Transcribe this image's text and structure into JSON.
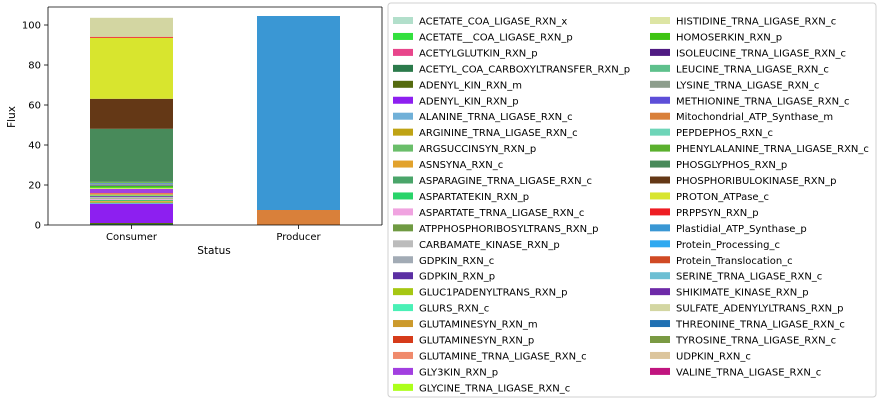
{
  "chart_data": {
    "type": "bar",
    "stacked": true,
    "xlabel": "Status",
    "ylabel": "Flux",
    "ylim": [
      0,
      109
    ],
    "yticks": [
      0,
      20,
      40,
      60,
      80,
      100
    ],
    "categories": [
      "Consumer",
      "Producer"
    ],
    "legend_position": "right, two columns",
    "series": [
      {
        "name": "ACETATE_COA_LIGASE_RXN_x",
        "color": "#b2dfcb",
        "values": [
          0,
          0
        ]
      },
      {
        "name": "ACETATE__COA_LIGASE_RXN_p",
        "color": "#33e03e",
        "values": [
          0,
          0
        ]
      },
      {
        "name": "ACETYLGLUTKIN_RXN_p",
        "color": "#e8458b",
        "values": [
          0,
          0
        ]
      },
      {
        "name": "ACETYL_COA_CARBOXYLTRANSFER_RXN_p",
        "color": "#2b7a4b",
        "values": [
          0.5,
          0
        ]
      },
      {
        "name": "ADENYL_KIN_RXN_m",
        "color": "#556b0f",
        "values": [
          0.5,
          0
        ]
      },
      {
        "name": "ADENYL_KIN_RXN_p",
        "color": "#8d1ff0",
        "values": [
          9.5,
          0
        ]
      },
      {
        "name": "ALANINE_TRNA_LIGASE_RXN_c",
        "color": "#70b0d8",
        "values": [
          0.5,
          0
        ]
      },
      {
        "name": "ARGININE_TRNA_LIGASE_RXN_c",
        "color": "#bfa314",
        "values": [
          0.3,
          0
        ]
      },
      {
        "name": "ARGSUCCINSYN_RXN_p",
        "color": "#6abe6a",
        "values": [
          0.3,
          0
        ]
      },
      {
        "name": "ASNSYNA_RXN_c",
        "color": "#e2a22c",
        "values": [
          0.4,
          0
        ]
      },
      {
        "name": "ASPARAGINE_TRNA_LIGASE_RXN_c",
        "color": "#4aa56a",
        "values": [
          0.3,
          0
        ]
      },
      {
        "name": "ASPARTATEKIN_RXN_p",
        "color": "#29d46a",
        "values": [
          0.3,
          0
        ]
      },
      {
        "name": "ASPARTATE_TRNA_LIGASE_RXN_c",
        "color": "#f0a3e0",
        "values": [
          0.5,
          0
        ]
      },
      {
        "name": "ATPPHOSPHORIBOSYLTRANS_RXN_p",
        "color": "#6f9a42",
        "values": [
          0.3,
          0
        ]
      },
      {
        "name": "CARBAMATE_KINASE_RXN_p",
        "color": "#bcbcbc",
        "values": [
          0.4,
          0
        ]
      },
      {
        "name": "GDPKIN_RXN_c",
        "color": "#a2abb5",
        "values": [
          0.3,
          0
        ]
      },
      {
        "name": "GDPKIN_RXN_p",
        "color": "#5b2fa3",
        "values": [
          0.4,
          0
        ]
      },
      {
        "name": "GLUC1PADENYLTRANS_RXN_p",
        "color": "#a6c713",
        "values": [
          0.3,
          0
        ]
      },
      {
        "name": "GLURS_RXN_c",
        "color": "#4af0b6",
        "values": [
          0.3,
          0
        ]
      },
      {
        "name": "GLUTAMINESYN_RXN_m",
        "color": "#cc9a2c",
        "values": [
          0.3,
          0
        ]
      },
      {
        "name": "GLUTAMINESYN_RXN_p",
        "color": "#d63b1a",
        "values": [
          0.3,
          0
        ]
      },
      {
        "name": "GLUTAMINE_TRNA_LIGASE_RXN_c",
        "color": "#f08a6c",
        "values": [
          0.3,
          0
        ]
      },
      {
        "name": "GLY3KIN_RXN_p",
        "color": "#a23fe0",
        "values": [
          2.0,
          0
        ]
      },
      {
        "name": "GLYCINE_TRNA_LIGASE_RXN_c",
        "color": "#acff1b",
        "values": [
          0.3,
          0
        ]
      },
      {
        "name": "HISTIDINE_TRNA_LIGASE_RXN_c",
        "color": "#dde5a4",
        "values": [
          0.3,
          0
        ]
      },
      {
        "name": "HOMOSERKIN_RXN_p",
        "color": "#3ec412",
        "values": [
          1.0,
          0
        ]
      },
      {
        "name": "ISOLEUCINE_TRNA_LIGASE_RXN_c",
        "color": "#4f1a82",
        "values": [
          0.3,
          0
        ]
      },
      {
        "name": "LEUCINE_TRNA_LIGASE_RXN_c",
        "color": "#5ec08c",
        "values": [
          0.3,
          0
        ]
      },
      {
        "name": "LYSINE_TRNA_LIGASE_RXN_c",
        "color": "#8d9e8c",
        "values": [
          0.3,
          0
        ]
      },
      {
        "name": "METHIONINE_TRNA_LIGASE_RXN_c",
        "color": "#5d4ed8",
        "values": [
          0.3,
          0
        ]
      },
      {
        "name": "Mitochondrial_ATP_Synthase_m",
        "color": "#d9803a",
        "values": [
          0,
          7.5
        ]
      },
      {
        "name": "PEPDEPHOS_RXN_c",
        "color": "#6ed5b8",
        "values": [
          0.3,
          0
        ]
      },
      {
        "name": "PHENYLALANINE_TRNA_LIGASE_RXN_c",
        "color": "#5bb02e",
        "values": [
          0.5,
          0
        ]
      },
      {
        "name": "PHOSGLYPHOS_RXN_p",
        "color": "#488a5a",
        "values": [
          26.5,
          0
        ]
      },
      {
        "name": "PHOSPHORIBULOKINASE_RXN_p",
        "color": "#643816",
        "values": [
          15.0,
          0
        ]
      },
      {
        "name": "PROTON_ATPase_c",
        "color": "#d8e52e",
        "values": [
          30.5,
          0
        ]
      },
      {
        "name": "PRPPSYN_RXN_p",
        "color": "#ee1d23",
        "values": [
          0.5,
          0
        ]
      },
      {
        "name": "Plastidial_ATP_Synthase_p",
        "color": "#3a97d4",
        "values": [
          0,
          97.0
        ]
      },
      {
        "name": "Protein_Processing_c",
        "color": "#2fa9f0",
        "values": [
          0,
          0
        ]
      },
      {
        "name": "Protein_Translocation_c",
        "color": "#d04a24",
        "values": [
          0,
          0
        ]
      },
      {
        "name": "SERINE_TRNA_LIGASE_RXN_c",
        "color": "#6dbfd3",
        "values": [
          0,
          0
        ]
      },
      {
        "name": "SHIKIMATE_KINASE_RXN_p",
        "color": "#6e2aa8",
        "values": [
          0,
          0
        ]
      },
      {
        "name": "SULFATE_ADENYLYLTRANS_RXN_p",
        "color": "#d3d6a2",
        "values": [
          9.5,
          0
        ]
      },
      {
        "name": "THREONINE_TRNA_LIGASE_RXN_c",
        "color": "#1f70b3",
        "values": [
          0,
          0
        ]
      },
      {
        "name": "TYROSINE_TRNA_LIGASE_RXN_c",
        "color": "#7a9a43",
        "values": [
          0,
          0
        ]
      },
      {
        "name": "UDPKIN_RXN_c",
        "color": "#dcc59c",
        "values": [
          0,
          0
        ]
      },
      {
        "name": "VALINE_TRNA_LIGASE_RXN_c",
        "color": "#c0157f",
        "values": [
          0,
          0
        ]
      }
    ]
  }
}
